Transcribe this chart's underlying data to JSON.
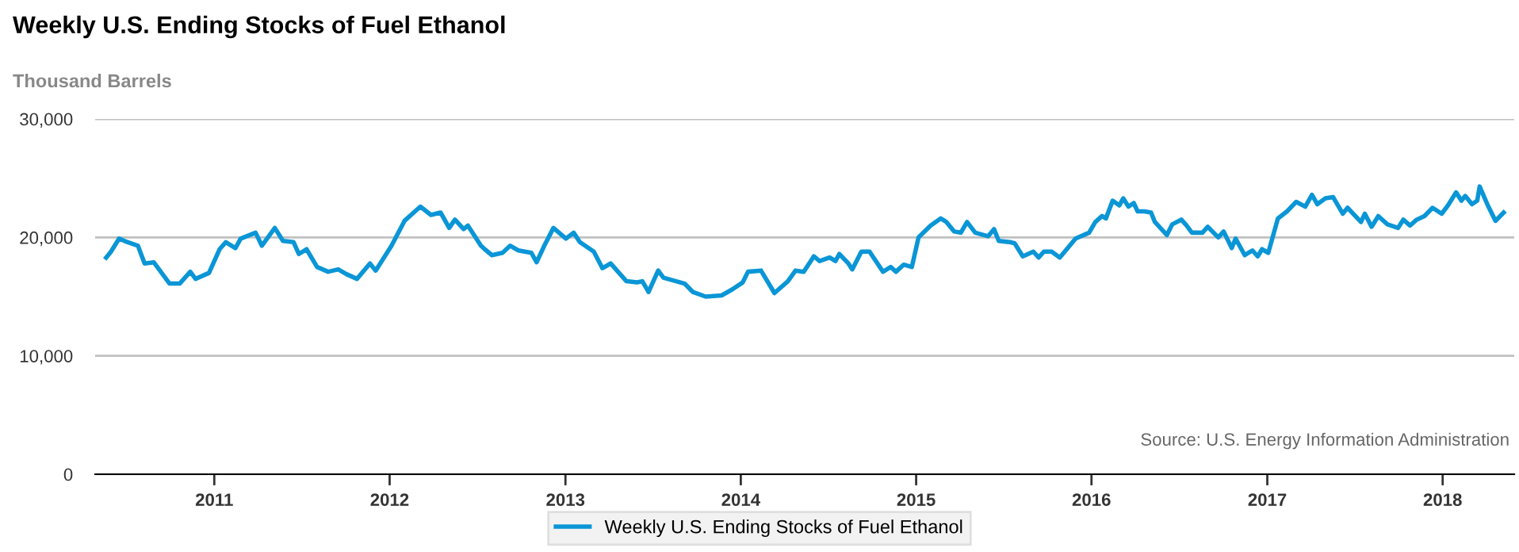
{
  "chart_data": {
    "type": "line",
    "title": "Weekly U.S. Ending Stocks of Fuel Ethanol",
    "ylabel": "Thousand Barrels",
    "annotations": [
      "Source: U.S. Energy Information Administration"
    ],
    "x": [
      "2010-05-21",
      "2010-05-31",
      "2010-06-17",
      "2010-06-28",
      "2010-07-26",
      "2010-08-09",
      "2010-08-28",
      "2010-09-30",
      "2010-10-21",
      "2010-11-12",
      "2010-11-23",
      "2010-12-21",
      "2011-01-12",
      "2011-01-25",
      "2011-02-14",
      "2011-02-25",
      "2011-03-28",
      "2011-04-10",
      "2011-05-07",
      "2011-05-24",
      "2011-06-15",
      "2011-06-26",
      "2011-07-12",
      "2011-08-03",
      "2011-08-26",
      "2011-09-16",
      "2011-10-03",
      "2011-10-25",
      "2011-11-21",
      "2011-12-03",
      "2012-01-05",
      "2012-02-01",
      "2012-03-05",
      "2012-03-27",
      "2012-04-16",
      "2012-05-04",
      "2012-05-16",
      "2012-06-03",
      "2012-06-12",
      "2012-07-09",
      "2012-07-17",
      "2012-08-01",
      "2012-08-23",
      "2012-09-08",
      "2012-09-25",
      "2012-10-22",
      "2012-11-02",
      "2012-11-18",
      "2012-12-07",
      "2013-01-02",
      "2013-01-18",
      "2013-01-31",
      "2013-03-01",
      "2013-03-19",
      "2013-04-05",
      "2013-05-08",
      "2013-05-30",
      "2013-06-10",
      "2013-06-23",
      "2013-07-13",
      "2013-07-24",
      "2013-09-06",
      "2013-09-23",
      "2013-10-20",
      "2013-11-22",
      "2013-12-14",
      "2014-01-05",
      "2014-01-16",
      "2014-02-12",
      "2014-03-12",
      "2014-04-09",
      "2014-04-25",
      "2014-05-12",
      "2014-06-02",
      "2014-06-14",
      "2014-07-05",
      "2014-07-17",
      "2014-07-25",
      "2014-08-13",
      "2014-08-21",
      "2014-09-09",
      "2014-09-26",
      "2014-10-24",
      "2014-11-09",
      "2014-11-20",
      "2014-12-06",
      "2014-12-23",
      "2015-01-06",
      "2015-01-31",
      "2015-02-21",
      "2015-03-05",
      "2015-03-21",
      "2015-04-04",
      "2015-04-17",
      "2015-05-04",
      "2015-05-31",
      "2015-06-12",
      "2015-06-22",
      "2015-07-15",
      "2015-07-25",
      "2015-08-11",
      "2015-09-02",
      "2015-09-13",
      "2015-09-24",
      "2015-10-10",
      "2015-10-27",
      "2015-11-29",
      "2015-12-27",
      "2016-01-09",
      "2016-01-23",
      "2016-01-31",
      "2016-02-14",
      "2016-02-28",
      "2016-03-07",
      "2016-03-18",
      "2016-03-29",
      "2016-04-06",
      "2016-04-20",
      "2016-05-04",
      "2016-05-12",
      "2016-06-06",
      "2016-06-17",
      "2016-07-06",
      "2016-07-17",
      "2016-07-28",
      "2016-08-19",
      "2016-08-30",
      "2016-09-21",
      "2016-10-02",
      "2016-10-19",
      "2016-10-27",
      "2016-11-15",
      "2016-12-01",
      "2016-12-12",
      "2016-12-21",
      "2017-01-03",
      "2017-01-23",
      "2017-02-11",
      "2017-03-02",
      "2017-03-21",
      "2017-04-04",
      "2017-04-15",
      "2017-05-02",
      "2017-05-18",
      "2017-06-07",
      "2017-06-17",
      "2017-07-15",
      "2017-07-23",
      "2017-08-06",
      "2017-08-20",
      "2017-09-08",
      "2017-09-30",
      "2017-10-11",
      "2017-10-25",
      "2017-11-08",
      "2017-11-24",
      "2017-12-11",
      "2017-12-30",
      "2018-01-12",
      "2018-01-29",
      "2018-02-09",
      "2018-02-17",
      "2018-03-03",
      "2018-03-14",
      "2018-03-19",
      "2018-04-05",
      "2018-04-21",
      "2018-05-08"
    ],
    "series": [
      {
        "name": "Weekly U.S. Ending Stocks of Fuel Ethanol",
        "color": "#0a96d6",
        "values": [
          18300,
          18800,
          19900,
          19700,
          19300,
          17800,
          17900,
          16100,
          16100,
          17100,
          16500,
          17000,
          19000,
          19600,
          19100,
          19900,
          20400,
          19300,
          20800,
          19700,
          19600,
          18600,
          19000,
          17500,
          17100,
          17300,
          16900,
          16500,
          17800,
          17200,
          19300,
          21400,
          22600,
          21900,
          22100,
          20800,
          21500,
          20700,
          21000,
          19300,
          19000,
          18500,
          18700,
          19300,
          18900,
          18700,
          17900,
          19300,
          20800,
          19900,
          20400,
          19600,
          18800,
          17400,
          17800,
          16300,
          16200,
          16300,
          15400,
          17200,
          16600,
          16100,
          15400,
          15000,
          15100,
          15600,
          16200,
          17100,
          17200,
          15300,
          16300,
          17200,
          17100,
          18400,
          18000,
          18300,
          18000,
          18600,
          17800,
          17300,
          18800,
          18800,
          17100,
          17500,
          17100,
          17700,
          17500,
          20000,
          21000,
          21600,
          21300,
          20500,
          20400,
          21300,
          20400,
          20100,
          20700,
          19700,
          19600,
          19500,
          18400,
          18800,
          18300,
          18800,
          18800,
          18300,
          19900,
          20400,
          21300,
          21800,
          21600,
          23100,
          22700,
          23300,
          22600,
          22900,
          22200,
          22200,
          22100,
          21300,
          20200,
          21100,
          21500,
          21000,
          20400,
          20400,
          20900,
          20000,
          20500,
          19100,
          19900,
          18500,
          18900,
          18400,
          19000,
          18700,
          21600,
          22200,
          23000,
          22600,
          23600,
          22800,
          23300,
          23400,
          22000,
          22500,
          21300,
          22000,
          20900,
          21800,
          21100,
          20800,
          21500,
          21000,
          21500,
          21800,
          22500,
          22000,
          22700,
          23800,
          23100,
          23500,
          22800,
          23100,
          24300,
          22700,
          21400,
          22100
        ]
      }
    ],
    "xlim": [
      "2010-04-28",
      "2018-05-30"
    ],
    "xticks": [
      {
        "value": "2011-01-01",
        "label": "2011"
      },
      {
        "value": "2012-01-01",
        "label": "2012"
      },
      {
        "value": "2013-01-01",
        "label": "2013"
      },
      {
        "value": "2014-01-01",
        "label": "2014"
      },
      {
        "value": "2015-01-01",
        "label": "2015"
      },
      {
        "value": "2016-01-01",
        "label": "2016"
      },
      {
        "value": "2017-01-01",
        "label": "2017"
      },
      {
        "value": "2018-01-01",
        "label": "2018"
      }
    ],
    "ylim": [
      0,
      30000
    ],
    "yticks": [
      0,
      {
        "value": 10000,
        "label": "10,000"
      },
      {
        "value": 20000,
        "label": "20,000"
      },
      {
        "value": 30000,
        "label": "30,000"
      }
    ],
    "grid": "y",
    "legend": "bottom",
    "marker": "none",
    "line_style": "solid"
  }
}
